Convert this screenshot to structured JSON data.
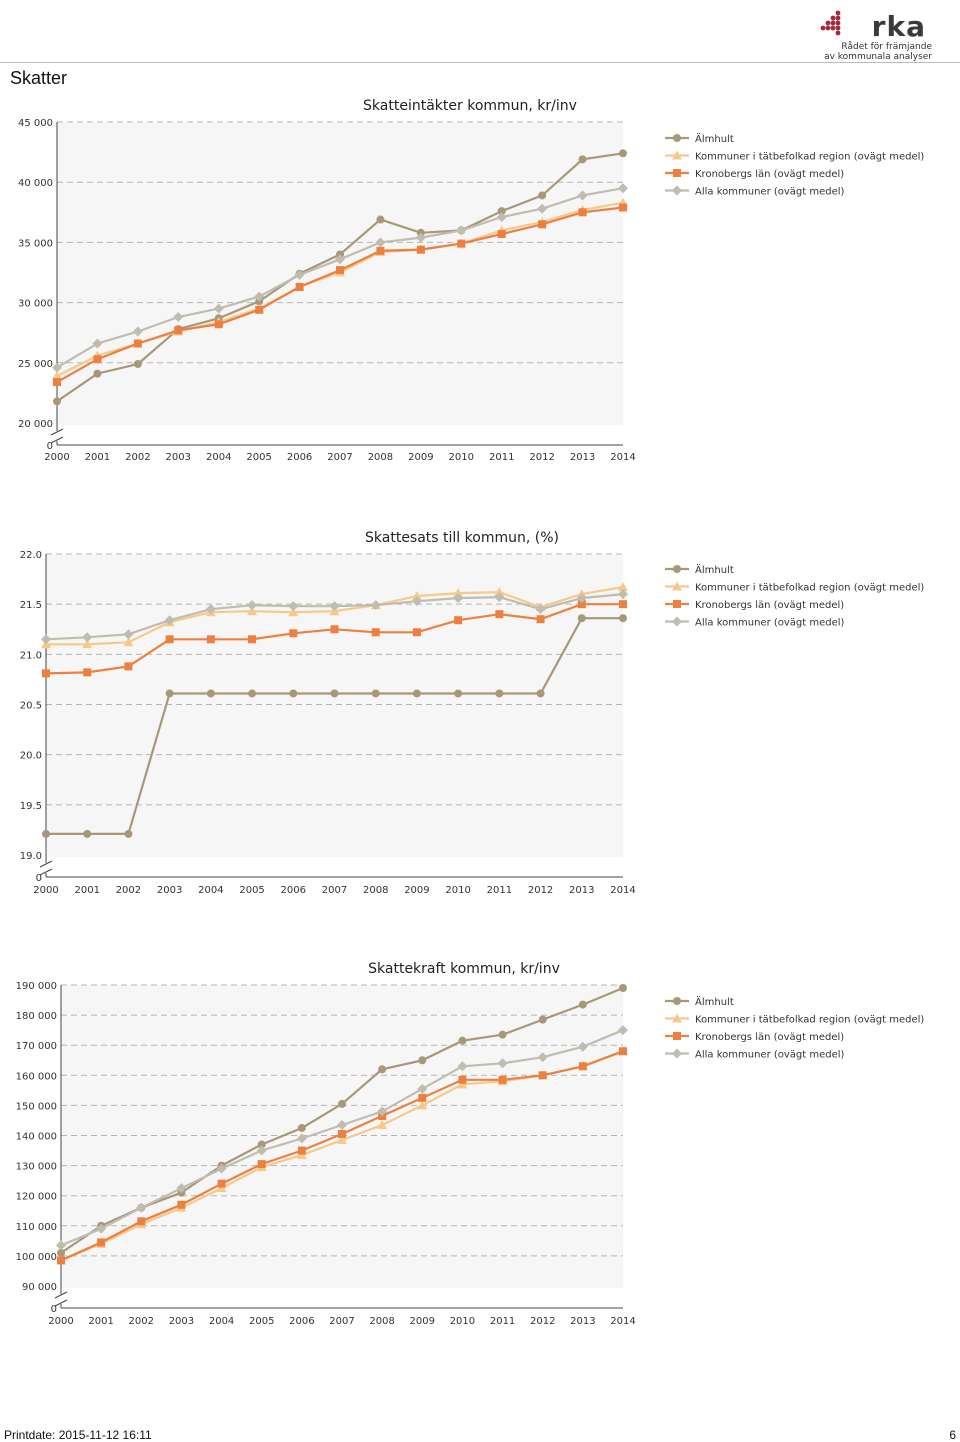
{
  "header": {
    "logo_text": "rka",
    "logo_sub1": "Rådet för främjande",
    "logo_sub2": "av kommunala analyser",
    "section_title": "Skatter"
  },
  "colors": {
    "almhult": "#a8987a",
    "tatbefolkad": "#f5c98a",
    "kronoberg": "#ec8040",
    "alla": "#c0bcb0"
  },
  "footer": {
    "printdate": "Printdate: 2015-11-12 16:11",
    "page_number": "6"
  },
  "chart_data": [
    {
      "type": "line",
      "title": "Skatteintäkter kommun, kr/inv",
      "x": [
        "2000",
        "2001",
        "2002",
        "2003",
        "2004",
        "2005",
        "2006",
        "2007",
        "2008",
        "2009",
        "2010",
        "2011",
        "2012",
        "2013",
        "2014"
      ],
      "ylim": [
        20000,
        45000
      ],
      "y_ticks": [
        "0",
        "20 000",
        "25 000",
        "30 000",
        "35 000",
        "40 000",
        "45 000"
      ],
      "axis_break": true,
      "legend_position": "top-right",
      "series": [
        {
          "name": "Älmhult",
          "key": "almhult",
          "marker": "circle",
          "values": [
            21800,
            24100,
            24900,
            27800,
            28700,
            30100,
            32400,
            34000,
            36900,
            35800,
            36000,
            37600,
            38900,
            41900,
            42400
          ]
        },
        {
          "name": "Kommuner i tätbefolkad region (ovägt medel)",
          "key": "tatbefolkad",
          "marker": "triangle",
          "values": [
            23900,
            25600,
            26600,
            27600,
            28400,
            29500,
            31300,
            32500,
            34200,
            34400,
            34900,
            36000,
            36700,
            37700,
            38300
          ]
        },
        {
          "name": "Kronobergs län (ovägt medel)",
          "key": "kronoberg",
          "marker": "square",
          "values": [
            23400,
            25300,
            26600,
            27700,
            28200,
            29400,
            31300,
            32700,
            34300,
            34400,
            34900,
            35700,
            36500,
            37500,
            37900
          ]
        },
        {
          "name": "Alla kommuner (ovägt medel)",
          "key": "alla",
          "marker": "diamond",
          "values": [
            24600,
            26600,
            27600,
            28800,
            29500,
            30500,
            32300,
            33600,
            35000,
            35400,
            36000,
            37100,
            37800,
            38900,
            39500
          ]
        }
      ]
    },
    {
      "type": "line",
      "title": "Skattesats till kommun, (%)",
      "x": [
        "2000",
        "2001",
        "2002",
        "2003",
        "2004",
        "2005",
        "2006",
        "2007",
        "2008",
        "2009",
        "2010",
        "2011",
        "2012",
        "2013",
        "2014"
      ],
      "ylim": [
        19.0,
        22.0
      ],
      "y_ticks": [
        "0",
        "19.0",
        "19.5",
        "20.0",
        "20.5",
        "21.0",
        "21.5",
        "22.0"
      ],
      "axis_break": true,
      "legend_position": "top-right",
      "series": [
        {
          "name": "Älmhult",
          "key": "almhult",
          "marker": "circle",
          "values": [
            19.21,
            19.21,
            19.21,
            20.61,
            20.61,
            20.61,
            20.61,
            20.61,
            20.61,
            20.61,
            20.61,
            20.61,
            20.61,
            21.36,
            21.36
          ]
        },
        {
          "name": "Kommuner i tätbefolkad region (ovägt medel)",
          "key": "tatbefolkad",
          "marker": "triangle",
          "values": [
            21.1,
            21.1,
            21.12,
            21.32,
            21.42,
            21.43,
            21.42,
            21.43,
            21.49,
            21.58,
            21.61,
            21.62,
            21.47,
            21.6,
            21.67
          ]
        },
        {
          "name": "Kronobergs län (ovägt medel)",
          "key": "kronoberg",
          "marker": "square",
          "values": [
            20.81,
            20.82,
            20.88,
            21.15,
            21.15,
            21.15,
            21.21,
            21.25,
            21.22,
            21.22,
            21.34,
            21.4,
            21.35,
            21.5,
            21.5
          ]
        },
        {
          "name": "Alla kommuner (ovägt medel)",
          "key": "alla",
          "marker": "diamond",
          "values": [
            21.15,
            21.17,
            21.2,
            21.34,
            21.45,
            21.49,
            21.48,
            21.48,
            21.49,
            21.53,
            21.56,
            21.57,
            21.45,
            21.56,
            21.6
          ]
        }
      ]
    },
    {
      "type": "line",
      "title": "Skattekraft kommun, kr/inv",
      "x": [
        "2000",
        "2001",
        "2002",
        "2003",
        "2004",
        "2005",
        "2006",
        "2007",
        "2008",
        "2009",
        "2010",
        "2011",
        "2012",
        "2013",
        "2014"
      ],
      "ylim": [
        90000,
        190000
      ],
      "y_ticks": [
        "0",
        "90 000",
        "100 000",
        "110 000",
        "120 000",
        "130 000",
        "140 000",
        "150 000",
        "160 000",
        "170 000",
        "180 000",
        "190 000"
      ],
      "axis_break": true,
      "legend_position": "top-right",
      "series": [
        {
          "name": "Älmhult",
          "key": "almhult",
          "marker": "circle",
          "values": [
            101000,
            110000,
            116000,
            121000,
            130000,
            137000,
            142500,
            150500,
            162000,
            165000,
            171500,
            173500,
            178500,
            183500,
            189000
          ]
        },
        {
          "name": "Kommuner i tätbefolkad region (ovägt medel)",
          "key": "tatbefolkad",
          "marker": "triangle",
          "values": [
            98500,
            104000,
            110500,
            116000,
            122500,
            129500,
            133500,
            138500,
            143500,
            150000,
            157000,
            158000,
            160000,
            163000,
            168000
          ]
        },
        {
          "name": "Kronobergs län (ovägt medel)",
          "key": "kronoberg",
          "marker": "square",
          "values": [
            98500,
            104500,
            111500,
            117000,
            124000,
            130500,
            135000,
            140500,
            146500,
            152500,
            158500,
            158500,
            160000,
            163000,
            168000
          ]
        },
        {
          "name": "Alla kommuner (ovägt medel)",
          "key": "alla",
          "marker": "diamond",
          "values": [
            103500,
            109000,
            116000,
            122500,
            129000,
            135000,
            139000,
            143500,
            148000,
            155500,
            163000,
            164000,
            166000,
            169500,
            175000
          ]
        }
      ]
    }
  ]
}
